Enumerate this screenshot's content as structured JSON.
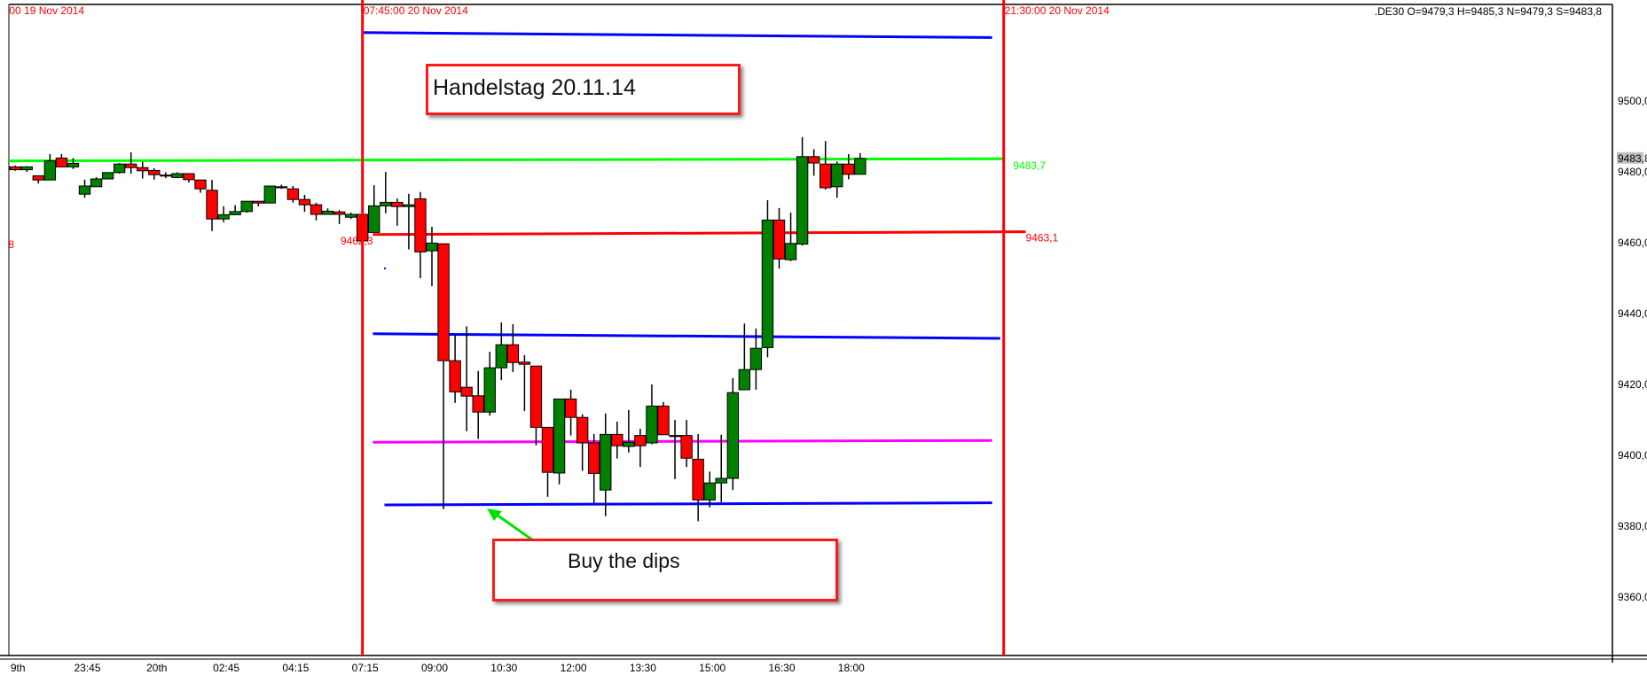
{
  "chart_data": {
    "type": "candlestick",
    "symbol_header": ".DE30 O=9479,3 H=9485,3 N=9479,3 S=9483,8",
    "ylim": [
      9345,
      9528
    ],
    "y_ticks": [
      {
        "value": 9500,
        "label": "9500,0"
      },
      {
        "value": 9480,
        "label": "9480,0"
      },
      {
        "value": 9460,
        "label": "9460,0"
      },
      {
        "value": 9440,
        "label": "9440,0"
      },
      {
        "value": 9420,
        "label": "9420,0"
      },
      {
        "value": 9400,
        "label": "9400,0"
      },
      {
        "value": 9380,
        "label": "9380,0"
      },
      {
        "value": 9360,
        "label": "9360,0"
      }
    ],
    "current_price": {
      "value": 9483.8,
      "label": "9483,8"
    },
    "x_ticks": [
      {
        "candle": 0,
        "label": "9th"
      },
      {
        "candle": 6,
        "label": "23:45"
      },
      {
        "candle": 12,
        "label": "20th"
      },
      {
        "candle": 18,
        "label": "02:45"
      },
      {
        "candle": 24,
        "label": "04:15"
      },
      {
        "candle": 30,
        "label": "07:15"
      },
      {
        "candle": 36,
        "label": "09:00"
      },
      {
        "candle": 42,
        "label": "10:30"
      },
      {
        "candle": 48,
        "label": "12:00"
      },
      {
        "candle": 54,
        "label": "13:30"
      },
      {
        "candle": 60,
        "label": "15:00"
      },
      {
        "candle": 66,
        "label": "16:30"
      },
      {
        "candle": 72,
        "label": "18:00"
      }
    ],
    "colors": {
      "up": "#008000",
      "down": "#ff0000",
      "outline": "#000000"
    },
    "candles_ohlc": [
      [
        9481.4,
        9481.8,
        9480.3,
        9480.6
      ],
      [
        9480.6,
        9481.6,
        9480.0,
        9481.4
      ],
      [
        9478.9,
        9478.9,
        9476.7,
        9477.7
      ],
      [
        9477.7,
        9485.0,
        9477.7,
        9483.1
      ],
      [
        9483.9,
        9485.0,
        9481.4,
        9481.4
      ],
      [
        9481.4,
        9483.9,
        9480.8,
        9482.4
      ],
      [
        9473.7,
        9477.8,
        9472.7,
        9476.0
      ],
      [
        9475.8,
        9478.5,
        9475.8,
        9478.0
      ],
      [
        9478.0,
        9479.8,
        9478.0,
        9479.8
      ],
      [
        9479.8,
        9482.5,
        9479.5,
        9482.2
      ],
      [
        9482.2,
        9485.5,
        9479.5,
        9481.2
      ],
      [
        9481.2,
        9482.8,
        9478.1,
        9480.3
      ],
      [
        9480.4,
        9481.0,
        9477.8,
        9479.2
      ],
      [
        9479.1,
        9479.9,
        9478.2,
        9478.9
      ],
      [
        9478.4,
        9479.9,
        9478.2,
        9479.5
      ],
      [
        9479.5,
        9479.5,
        9477.0,
        9477.8
      ],
      [
        9477.7,
        9477.7,
        9474.1,
        9475.2
      ],
      [
        9474.8,
        9477.7,
        9463.3,
        9466.7
      ],
      [
        9466.7,
        9470.3,
        9465.8,
        9467.9
      ],
      [
        9467.9,
        9470.6,
        9467.9,
        9468.8
      ],
      [
        9468.8,
        9471.7,
        9468.5,
        9471.7
      ],
      [
        9471.7,
        9471.7,
        9470.3,
        9471.2
      ],
      [
        9471.2,
        9476.0,
        9471.2,
        9476.0
      ],
      [
        9475.8,
        9476.4,
        9475.2,
        9475.8
      ],
      [
        9475.2,
        9476.0,
        9471.3,
        9472.2
      ],
      [
        9472.2,
        9473.5,
        9468.7,
        9470.7
      ],
      [
        9470.7,
        9471.3,
        9466.3,
        9468.0
      ],
      [
        9468.0,
        9469.7,
        9468.0,
        9468.9
      ],
      [
        9468.7,
        9469.2,
        9465.3,
        9468.0
      ],
      [
        9467.2,
        9468.5,
        9466.7,
        9468.0
      ],
      [
        9468.0,
        9468.0,
        9460.5,
        9460.5
      ],
      [
        9462.9,
        9476.2,
        9462.9,
        9470.4
      ],
      [
        9470.4,
        9480.0,
        9468.3,
        9471.4
      ],
      [
        9471.4,
        9472.5,
        9464.8,
        9470.2
      ],
      [
        9470.2,
        9473.8,
        9458.1,
        9470.7
      ],
      [
        9472.4,
        9474.3,
        9450.0,
        9457.4
      ],
      [
        9457.7,
        9464.5,
        9447.7,
        9459.9
      ],
      [
        9459.7,
        9459.7,
        9384.8,
        9426.7
      ],
      [
        9426.7,
        9433.9,
        9414.8,
        9417.9
      ],
      [
        9419.2,
        9436.4,
        9406.8,
        9416.7
      ],
      [
        9416.8,
        9423.8,
        9404.6,
        9412.2
      ],
      [
        9412.2,
        9429.2,
        9411.2,
        9424.7
      ],
      [
        9424.7,
        9437.5,
        9421.2,
        9431.2
      ],
      [
        9431.2,
        9437.0,
        9423.5,
        9426.2
      ],
      [
        9426.3,
        9428.3,
        9412.5,
        9425.7
      ],
      [
        9425.2,
        9425.2,
        9402.8,
        9407.9
      ],
      [
        9407.9,
        9407.9,
        9388.3,
        9395.2
      ],
      [
        9395.0,
        9415.9,
        9391.8,
        9415.9
      ],
      [
        9415.9,
        9418.5,
        9405.6,
        9410.7
      ],
      [
        9410.7,
        9411.6,
        9395.6,
        9403.5
      ],
      [
        9403.5,
        9406.0,
        9386.4,
        9394.9
      ],
      [
        9390.2,
        9411.8,
        9382.8,
        9405.9
      ],
      [
        9405.9,
        9409.5,
        9399.1,
        9402.7
      ],
      [
        9402.5,
        9412.8,
        9400.8,
        9403.7
      ],
      [
        9405.6,
        9407.5,
        9396.7,
        9402.7
      ],
      [
        9403.5,
        9420.0,
        9403.1,
        9413.9
      ],
      [
        9413.9,
        9415.0,
        9405.8,
        9405.8
      ],
      [
        9405.6,
        9410.0,
        9393.3,
        9405.6
      ],
      [
        9405.6,
        9410.0,
        9396.7,
        9399.2
      ],
      [
        9398.9,
        9406.0,
        9381.4,
        9387.4
      ],
      [
        9387.4,
        9395.4,
        9385.3,
        9392.2
      ],
      [
        9392.2,
        9405.8,
        9386.8,
        9393.5
      ],
      [
        9393.5,
        9421.8,
        9390.2,
        9417.7
      ],
      [
        9418.5,
        9437.2,
        9418.5,
        9424.2
      ],
      [
        9424.2,
        9435.8,
        9418.5,
        9430.2
      ],
      [
        9430.4,
        9472.0,
        9427.7,
        9466.4
      ],
      [
        9466.4,
        9469.8,
        9452.7,
        9455.4
      ],
      [
        9455.2,
        9468.5,
        9454.8,
        9459.8
      ],
      [
        9459.6,
        9489.8,
        9459.2,
        9484.3
      ],
      [
        9484.3,
        9486.4,
        9478.9,
        9482.5
      ],
      [
        9482.2,
        9488.7,
        9475.0,
        9475.5
      ],
      [
        9475.8,
        9482.9,
        9472.7,
        9482.2
      ],
      [
        9482.2,
        9485.0,
        9477.9,
        9479.3
      ],
      [
        9479.3,
        9485.3,
        9479.3,
        9483.8
      ]
    ],
    "vertical_lines": [
      {
        "candle": -0.6,
        "label": "00 19 Nov 2014",
        "color": "#ff0000",
        "draw": false
      },
      {
        "candle": 30.0,
        "label": "07:45:00 20 Nov 2014",
        "color": "#ff0000",
        "draw": true
      },
      {
        "candle": 85.4,
        "label": "21:30:00 20 Nov 2014",
        "color": "#ff0000",
        "draw": true
      }
    ],
    "horizontal_lines": [
      {
        "name": "blue-top",
        "color": "#0000ff",
        "from_candle": 30.1,
        "to_candle": 84.4,
        "from_value": 9519.3,
        "to_value": 9517.9
      },
      {
        "name": "green",
        "color": "#00ff00",
        "from_candle": -0.55,
        "to_candle": 85.3,
        "from_value": 9483.1,
        "to_value": 9483.7,
        "label": "9483,7"
      },
      {
        "name": "red",
        "color": "#ff0000",
        "from_candle": 30.9,
        "to_candle": 87.3,
        "from_value": 9462.3,
        "to_value": 9463.1,
        "label": "9463,1"
      },
      {
        "name": "blue-middle",
        "color": "#0000ff",
        "from_candle": 30.9,
        "to_candle": 85.1,
        "from_value": 9434.3,
        "to_value": 9433.0
      },
      {
        "name": "magenta",
        "color": "#ff00ff",
        "from_candle": 30.9,
        "to_candle": 84.4,
        "from_value": 9403.7,
        "to_value": 9404.2
      },
      {
        "name": "blue-bottom",
        "color": "#0000ff",
        "from_candle": 31.9,
        "to_candle": 84.4,
        "from_value": 9386.0,
        "to_value": 9386.6
      }
    ],
    "price_labels": [
      {
        "label": "9462,3",
        "value": 9459.5,
        "candle": 28.1,
        "color": "#ff0000"
      },
      {
        "label": "8",
        "value": 9458.5,
        "candle": -0.6,
        "color": "#ff0000"
      }
    ]
  },
  "annotations": {
    "note_top": "Handelstag 20.11.14",
    "note_bottom": "Buy the dips"
  }
}
